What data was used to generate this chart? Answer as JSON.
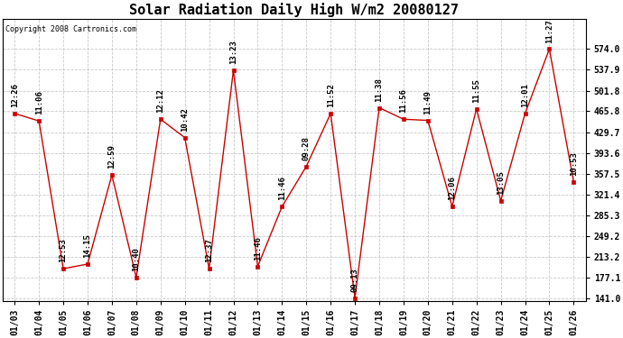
{
  "title": "Solar Radiation Daily High W/m2 20080127",
  "copyright": "Copyright 2008 Cartronics.com",
  "dates": [
    "01/03",
    "01/04",
    "01/05",
    "01/06",
    "01/07",
    "01/08",
    "01/09",
    "01/10",
    "01/11",
    "01/12",
    "01/13",
    "01/14",
    "01/15",
    "01/16",
    "01/17",
    "01/18",
    "01/19",
    "01/20",
    "01/21",
    "01/22",
    "01/23",
    "01/24",
    "01/25",
    "01/26"
  ],
  "values": [
    462,
    449,
    192,
    200,
    355,
    177,
    452,
    420,
    192,
    537,
    196,
    300,
    370,
    462,
    141,
    472,
    452,
    450,
    300,
    470,
    310,
    462,
    574,
    343
  ],
  "labels": [
    "12:26",
    "11:06",
    "12:53",
    "14:15",
    "12:59",
    "10:40",
    "12:12",
    "10:42",
    "12:37",
    "13:23",
    "11:46",
    "11:46",
    "09:28",
    "11:52",
    "09:13",
    "11:38",
    "11:56",
    "11:49",
    "12:06",
    "11:55",
    "13:05",
    "12:01",
    "11:27",
    "10:53"
  ],
  "line_color": "#cc0000",
  "marker_color": "#cc0000",
  "bg_color": "#ffffff",
  "grid_color": "#bbbbbb",
  "ylim_min": 141.0,
  "ylim_max": 574.0,
  "ytick_max_display": 574.0,
  "yticks": [
    141.0,
    177.1,
    213.2,
    249.2,
    285.3,
    321.4,
    357.5,
    393.6,
    429.7,
    465.8,
    501.8,
    537.9,
    574.0
  ],
  "title_fontsize": 11,
  "label_fontsize": 6.5,
  "copyright_fontsize": 6,
  "tick_fontsize": 7,
  "figwidth": 6.9,
  "figheight": 3.75,
  "dpi": 100
}
